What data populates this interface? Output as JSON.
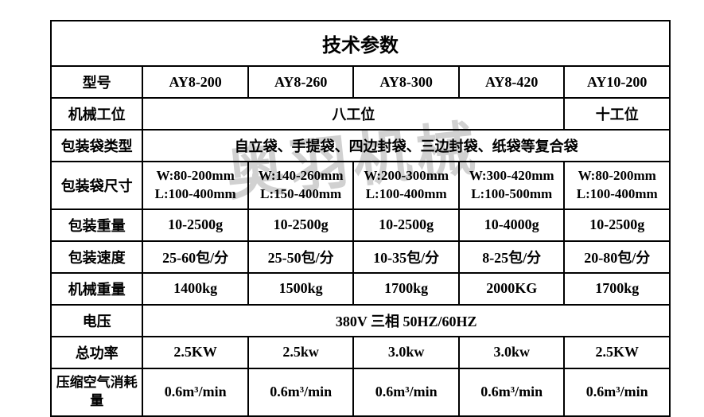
{
  "title": "技术参数",
  "watermark": "奥羽机械",
  "headers": {
    "model": "型号",
    "station": "机械工位",
    "bagType": "包装袋类型",
    "bagSize": "包装袋尺寸",
    "packWeight": "包装重量",
    "packSpeed": "包装速度",
    "machineWeight": "机械重量",
    "voltage": "电压",
    "totalPower": "总功率",
    "airConsumption": "压缩空气消耗量"
  },
  "models": [
    "AY8-200",
    "AY8-260",
    "AY8-300",
    "AY8-420",
    "AY10-200"
  ],
  "station": {
    "eight": "八工位",
    "ten": "十工位"
  },
  "bagType": "自立袋、手提袋、四边封袋、三边封袋、纸袋等复合袋",
  "bagSize": [
    {
      "w": "W:80-200mm",
      "l": "L:100-400mm"
    },
    {
      "w": "W:140-260mm",
      "l": "L:150-400mm"
    },
    {
      "w": "W:200-300mm",
      "l": "L:100-400mm"
    },
    {
      "w": "W:300-420mm",
      "l": "L:100-500mm"
    },
    {
      "w": "W:80-200mm",
      "l": "L:100-400mm"
    }
  ],
  "packWeight": [
    "10-2500g",
    "10-2500g",
    "10-2500g",
    "10-4000g",
    "10-2500g"
  ],
  "packSpeed": [
    "25-60包/分",
    "25-50包/分",
    "10-35包/分",
    "8-25包/分",
    "20-80包/分"
  ],
  "machineWeight": [
    "1400kg",
    "1500kg",
    "1700kg",
    "2000KG",
    "1700kg"
  ],
  "voltage": "380V 三相 50HZ/60HZ",
  "totalPower": [
    "2.5KW",
    "2.5kw",
    "3.0kw",
    "3.0kw",
    "2.5KW"
  ],
  "airConsumption": [
    "0.6m³/min",
    "0.6m³/min",
    "0.6m³/min",
    "0.6m³/min",
    "0.6m³/min"
  ]
}
